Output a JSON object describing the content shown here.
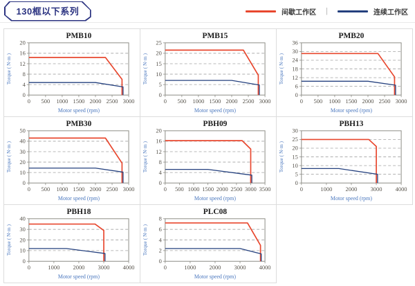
{
  "header": {
    "title": "130框以下系列",
    "legend": {
      "items": [
        {
          "label": "间歇工作区",
          "color": "#e8472e"
        },
        {
          "label": "连续工作区",
          "color": "#24407e"
        }
      ],
      "separator": "|"
    }
  },
  "colors": {
    "red": "#e8472e",
    "navy": "#24407e",
    "grid_dash": "#a3a3a3",
    "plot_border": "#8c8c85",
    "tick_label": "#56524a",
    "axis_label": "#4a77be",
    "chart_title": "#1a1a1a",
    "cell_border": "#dcdcdc",
    "title_box": "#2a3280"
  },
  "chart_data": [
    {
      "type": "line",
      "title": "PMB10",
      "xlabel": "Motor speed (rpm)",
      "ylabel": "Torque ( N·m )",
      "xlim": [
        0,
        3000
      ],
      "xticks": [
        0,
        500,
        1000,
        1500,
        2000,
        2500,
        3000
      ],
      "ylim": [
        0,
        20
      ],
      "yticks": [
        0,
        4,
        8,
        12,
        16,
        20
      ],
      "grid": "horizontal-dashed",
      "legend_position": "none",
      "series": [
        {
          "name": "间歇工作区",
          "color": "#e8472e",
          "points": [
            [
              0,
              14.4
            ],
            [
              2300,
              14.4
            ],
            [
              2800,
              6
            ],
            [
              2800,
              0
            ]
          ]
        },
        {
          "name": "连续工作区",
          "color": "#24407e",
          "points": [
            [
              0,
              4.8
            ],
            [
              2000,
              4.8
            ],
            [
              2830,
              3.1
            ],
            [
              2830,
              0
            ]
          ]
        }
      ]
    },
    {
      "type": "line",
      "title": "PMB15",
      "xlabel": "Motor speed (rpm)",
      "ylabel": "Torque ( N·m )",
      "xlim": [
        0,
        3000
      ],
      "xticks": [
        0,
        500,
        1000,
        1500,
        2000,
        2500,
        3000
      ],
      "ylim": [
        0,
        25
      ],
      "yticks": [
        0,
        5,
        10,
        15,
        20,
        25
      ],
      "grid": "horizontal-dashed",
      "legend_position": "none",
      "series": [
        {
          "name": "间歇工作区",
          "color": "#e8472e",
          "points": [
            [
              0,
              21.5
            ],
            [
              2350,
              21.5
            ],
            [
              2800,
              9.5
            ],
            [
              2800,
              0
            ]
          ]
        },
        {
          "name": "连续工作区",
          "color": "#24407e",
          "points": [
            [
              0,
              7
            ],
            [
              2000,
              7
            ],
            [
              2830,
              4.8
            ],
            [
              2830,
              0
            ]
          ]
        }
      ]
    },
    {
      "type": "line",
      "title": "PMB20",
      "xlabel": "Motor speed (rpm)",
      "ylabel": "Torque ( N·m )",
      "xlim": [
        0,
        3000
      ],
      "xticks": [
        0,
        500,
        1000,
        1500,
        2000,
        2500,
        3000
      ],
      "ylim": [
        0,
        36
      ],
      "yticks": [
        0,
        6,
        12,
        18,
        24,
        30,
        36
      ],
      "grid": "horizontal-dashed",
      "legend_position": "none",
      "series": [
        {
          "name": "间歇工作区",
          "color": "#e8472e",
          "points": [
            [
              0,
              28.6
            ],
            [
              2300,
              28.6
            ],
            [
              2800,
              12.5
            ],
            [
              2800,
              0
            ]
          ]
        },
        {
          "name": "连续工作区",
          "color": "#24407e",
          "points": [
            [
              0,
              9.5
            ],
            [
              2000,
              9.5
            ],
            [
              2830,
              6.8
            ],
            [
              2830,
              0
            ]
          ]
        }
      ]
    },
    {
      "type": "line",
      "title": "PMB30",
      "xlabel": "Motor speed (rpm)",
      "ylabel": "Torque ( N·m )",
      "xlim": [
        0,
        3000
      ],
      "xticks": [
        0,
        500,
        1000,
        1500,
        2000,
        2500,
        3000
      ],
      "ylim": [
        0,
        50
      ],
      "yticks": [
        0,
        10,
        20,
        30,
        40,
        50
      ],
      "grid": "horizontal-dashed",
      "legend_position": "none",
      "series": [
        {
          "name": "间歇工作区",
          "color": "#e8472e",
          "points": [
            [
              0,
              43
            ],
            [
              2300,
              43
            ],
            [
              2800,
              19
            ],
            [
              2800,
              0
            ]
          ]
        },
        {
          "name": "连续工作区",
          "color": "#24407e",
          "points": [
            [
              0,
              14.3
            ],
            [
              2000,
              14.3
            ],
            [
              2830,
              10.4
            ],
            [
              2830,
              0
            ]
          ]
        }
      ]
    },
    {
      "type": "line",
      "title": "PBH09",
      "xlabel": "Motor speed (rpm)",
      "ylabel": "Torque ( N·m )",
      "xlim": [
        0,
        3500
      ],
      "xticks": [
        0,
        500,
        1000,
        1500,
        2000,
        2500,
        3000,
        3500
      ],
      "ylim": [
        0,
        20
      ],
      "yticks": [
        0,
        4,
        8,
        12,
        16,
        20
      ],
      "grid": "horizontal-dashed",
      "legend_position": "none",
      "series": [
        {
          "name": "间歇工作区",
          "color": "#e8472e",
          "points": [
            [
              0,
              16.2
            ],
            [
              2700,
              16.2
            ],
            [
              3000,
              13
            ],
            [
              3000,
              0
            ]
          ]
        },
        {
          "name": "连续工作区",
          "color": "#24407e",
          "points": [
            [
              0,
              5.2
            ],
            [
              1500,
              5.2
            ],
            [
              3040,
              3
            ],
            [
              3040,
              0
            ]
          ]
        }
      ]
    },
    {
      "type": "line",
      "title": "PBH13",
      "xlabel": "Motor speed (rpm)",
      "ylabel": "Torque ( N·m )",
      "xlim": [
        0,
        4000
      ],
      "xticks": [
        0,
        1000,
        2000,
        3000,
        4000
      ],
      "ylim": [
        0,
        30
      ],
      "yticks": [
        0,
        5,
        10,
        15,
        20,
        25,
        30
      ],
      "grid": "horizontal-dashed",
      "legend_position": "none",
      "series": [
        {
          "name": "间歇工作区",
          "color": "#e8472e",
          "points": [
            [
              0,
              25
            ],
            [
              2700,
              25
            ],
            [
              3000,
              21
            ],
            [
              3000,
              0
            ]
          ]
        },
        {
          "name": "连续工作区",
          "color": "#24407e",
          "points": [
            [
              0,
              8.3
            ],
            [
              1500,
              8.3
            ],
            [
              3050,
              5
            ],
            [
              3050,
              0
            ]
          ]
        }
      ]
    },
    {
      "type": "line",
      "title": "PBH18",
      "xlabel": "Motor speed (rpm)",
      "ylabel": "Torque ( N·m )",
      "xlim": [
        0,
        4000
      ],
      "xticks": [
        0,
        1000,
        2000,
        3000,
        4000
      ],
      "ylim": [
        0,
        40
      ],
      "yticks": [
        0,
        10,
        20,
        30,
        40
      ],
      "grid": "horizontal-dashed",
      "legend_position": "none",
      "series": [
        {
          "name": "间歇工作区",
          "color": "#e8472e",
          "points": [
            [
              0,
              35
            ],
            [
              2650,
              35
            ],
            [
              3000,
              29
            ],
            [
              3000,
              0
            ]
          ]
        },
        {
          "name": "连续工作区",
          "color": "#24407e",
          "points": [
            [
              0,
              12
            ],
            [
              1500,
              12
            ],
            [
              3050,
              7.3
            ],
            [
              3050,
              0
            ]
          ]
        }
      ]
    },
    {
      "type": "line",
      "title": "PLC08",
      "xlabel": "Motor speed (rpm)",
      "ylabel": "Torque ( N·m )",
      "xlim": [
        0,
        4000
      ],
      "xticks": [
        0,
        1000,
        2000,
        3000,
        4000
      ],
      "ylim": [
        0,
        8
      ],
      "yticks": [
        0,
        2,
        4,
        6,
        8
      ],
      "grid": "horizontal-dashed",
      "legend_position": "none",
      "series": [
        {
          "name": "间歇工作区",
          "color": "#e8472e",
          "points": [
            [
              0,
              7.2
            ],
            [
              3300,
              7.2
            ],
            [
              3820,
              3
            ],
            [
              3820,
              0
            ]
          ]
        },
        {
          "name": "连续工作区",
          "color": "#24407e",
          "points": [
            [
              0,
              2.4
            ],
            [
              3000,
              2.4
            ],
            [
              3850,
              1.4
            ],
            [
              3850,
              0
            ]
          ]
        }
      ]
    }
  ]
}
